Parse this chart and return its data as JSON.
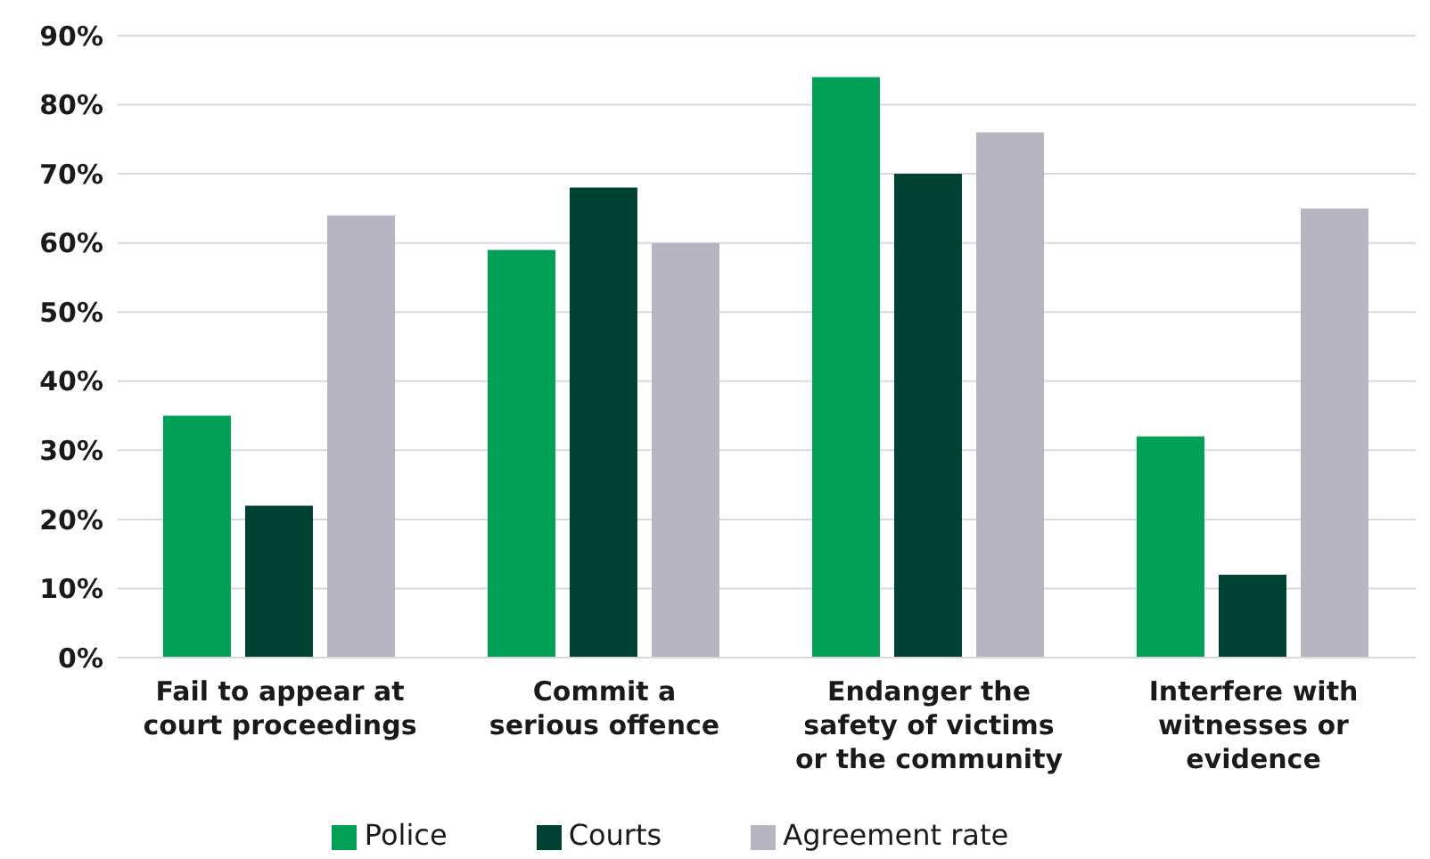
{
  "chart_data": {
    "type": "bar",
    "categories": [
      "Fail to appear at\ncourt proceedings",
      "Commit a\nserious offence",
      "Endanger the\nsafety of victims\nor the community",
      "Interfere with\nwitnesses or\nevidence"
    ],
    "series": [
      {
        "name": "Police",
        "color": "#00a056",
        "values": [
          35,
          59,
          84,
          32
        ]
      },
      {
        "name": "Courts",
        "color": "#004232",
        "values": [
          22,
          68,
          70,
          12
        ]
      },
      {
        "name": "Agreement rate",
        "color": "#b6b5c1",
        "values": [
          64,
          60,
          76,
          65
        ]
      }
    ],
    "ylim": [
      0,
      90
    ],
    "yticks": [
      {
        "value": 0,
        "label": "0%"
      },
      {
        "value": 10,
        "label": "10%"
      },
      {
        "value": 20,
        "label": "20%"
      },
      {
        "value": 30,
        "label": "30%"
      },
      {
        "value": 40,
        "label": "40%"
      },
      {
        "value": 50,
        "label": "50%"
      },
      {
        "value": 60,
        "label": "60%"
      },
      {
        "value": 70,
        "label": "70%"
      },
      {
        "value": 80,
        "label": "80%"
      },
      {
        "value": 90,
        "label": "90%"
      }
    ],
    "grid": "y",
    "legend": "bottom"
  }
}
